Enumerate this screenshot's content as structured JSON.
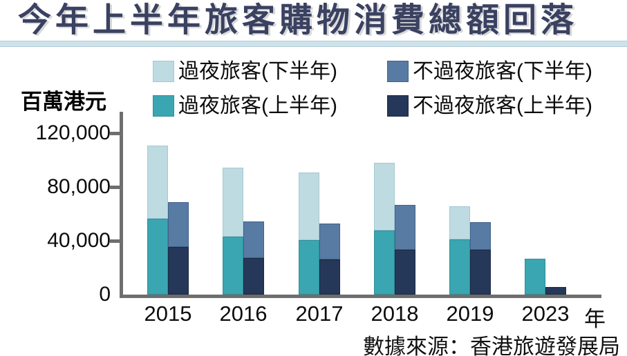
{
  "title": "今年上半年旅客購物消費總額回落",
  "unit_label": "百萬港元",
  "source": "數據來源：香港旅遊發展局",
  "colors": {
    "overnight_h2_light_blue": "#bedbe2",
    "overnight_h1_teal": "#3aa6b1",
    "non_overnight_h2_steel_blue": "#587ba3",
    "non_overnight_h1_navy": "#263859",
    "title_navy": "#3a4161",
    "axis_gray": "#6e6e6e",
    "rule_light_blue": "#cfe2e9"
  },
  "legend": [
    {
      "label": "過夜旅客(下半年)",
      "color": "#bedbe2",
      "border": "#a5c9d2"
    },
    {
      "label": "不過夜旅客(下半年)",
      "color": "#587ba3",
      "border": "#41618c"
    },
    {
      "label": "過夜旅客(上半年)",
      "color": "#3aa6b1",
      "border": "#2e8f99"
    },
    {
      "label": "不過夜旅客(上半年)",
      "color": "#263859",
      "border": "#1b2942"
    }
  ],
  "axis": {
    "y_ticks": [
      {
        "label": "120,000",
        "value": 120000
      },
      {
        "label": "80,000",
        "value": 80000
      },
      {
        "label": "40,000",
        "value": 40000
      },
      {
        "label": "0",
        "value": 0
      }
    ],
    "x_suffix": "年"
  },
  "chart_data": {
    "type": "bar",
    "subtype": "grouped-stacked",
    "title": "今年上半年旅客購物消費總額回落",
    "ylabel": "百萬港元",
    "unit": "HK$ million",
    "categories": [
      "2015",
      "2016",
      "2017",
      "2018",
      "2019",
      "2023"
    ],
    "series": [
      {
        "name": "過夜旅客(上半年)",
        "stack": "overnight",
        "color": "#3aa6b1",
        "border": "#2e8f99",
        "values": [
          56500,
          43000,
          40500,
          47500,
          41000,
          26500
        ]
      },
      {
        "name": "過夜旅客(下半年)",
        "stack": "overnight",
        "color": "#bedbe2",
        "border": "#a5c9d2",
        "values": [
          54500,
          51500,
          50000,
          50500,
          24500,
          0
        ]
      },
      {
        "name": "不過夜旅客(上半年)",
        "stack": "non-overnight",
        "color": "#263859",
        "border": "#1b2942",
        "values": [
          35500,
          27000,
          26000,
          33500,
          33500,
          5500
        ]
      },
      {
        "name": "不過夜旅客(下半年)",
        "stack": "non-overnight",
        "color": "#587ba3",
        "border": "#41618c",
        "values": [
          33500,
          27000,
          26500,
          33500,
          20500,
          0
        ]
      }
    ],
    "ylim": [
      0,
      120000
    ],
    "y_tick_values": [
      0,
      40000,
      80000,
      120000
    ],
    "grid": false,
    "legend_position": "top"
  }
}
